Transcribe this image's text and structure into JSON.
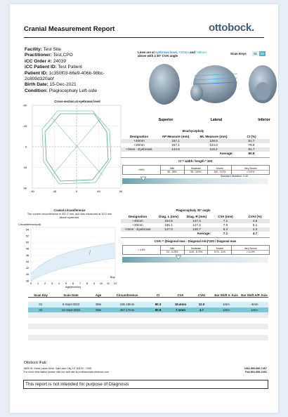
{
  "header": {
    "title": "Cranial Measurement Report",
    "logo": "ottobock."
  },
  "patient": [
    {
      "label": "Facility:",
      "value": "Test Site"
    },
    {
      "label": "Practitioner:",
      "value": "Test,CPO"
    },
    {
      "label": "iCC Order #:",
      "value": "24039"
    },
    {
      "label": "iCC Patient ID:",
      "value": "Test Patient"
    },
    {
      "label": "Patient ID:",
      "value": "1c350f03-66e9-406b-98bc-"
    },
    {
      "label": "",
      "value": "2c809d320abf"
    },
    {
      "label": "Birth Date:",
      "value": "15-Dec-2021"
    },
    {
      "label": "Condition:",
      "value": "Plagiocephaly Left-side"
    }
  ],
  "scan_view": {
    "note_parts": [
      "Lines are at ",
      "eyebrows level",
      ", ",
      "+20mm",
      " and ",
      "+40mm"
    ],
    "note_end": "above with a 30° CVAI angle",
    "scan_keys_label": "Scan Keys",
    "scan_keys": [
      "01",
      "02"
    ],
    "views": [
      "Superior",
      "Lateral",
      "Inferior"
    ]
  },
  "cross_section": {
    "title": "Cross-section at eyebrows level",
    "yticks": [
      "-90",
      "-45",
      "0",
      "45",
      "90"
    ],
    "xticks": [
      "-90",
      "-45",
      "0",
      "45",
      "90"
    ]
  },
  "brachycephaly": {
    "title": "Brachycephaly",
    "columns": [
      "Designation",
      "AP Measure (mm)",
      "ML Measure (mm)",
      "CI (%)"
    ],
    "rows": [
      [
        "+40mm",
        "157.1",
        "128.5",
        "81.7"
      ],
      [
        "+20mm",
        "157.1",
        "124.0",
        "78.9"
      ],
      [
        "+0mm - Eyebrows",
        "144.8",
        "118.2",
        "81.7"
      ]
    ],
    "average": {
      "label": "Average:",
      "values": [
        "80.8"
      ]
    },
    "formula": "CI = width / length * 100",
    "scale": [
      {
        "range": "<90%"
      },
      {
        "name": "Mild",
        "range": "90 - 95%"
      },
      {
        "name": "Moderate",
        "range": "95 - 100%"
      },
      {
        "name": "Severe",
        "range": "100 - 107%"
      },
      {
        "name": "Very Severe",
        "range": "> 107%"
      }
    ],
    "std_dev": "Standard deviation: 0.42"
  },
  "plagiocephaly": {
    "title": "Plagiocephaly 30° angle",
    "columns": [
      "Designation",
      "Diag. L (mm)",
      "Diag. R (mm)",
      "CVA (mm)",
      "CVAI (%)"
    ],
    "rows": [
      [
        "+40mm",
        "154.5",
        "147.4",
        "7.1",
        "4.6"
      ],
      [
        "+20mm",
        "155.1",
        "147.2",
        "7.9",
        "5.1"
      ],
      [
        "+0mm - Eyebrows",
        "147.0",
        "140.7",
        "6.3",
        "4.3"
      ]
    ],
    "average": {
      "label": "Average:",
      "values": [
        "7.1",
        "4.7"
      ]
    },
    "formula": "CVAI = (Diagonal max - Diagonal min)*100 / Diagonal max",
    "scale": [
      {
        "range": "< 3.5%"
      },
      {
        "name": "Mild",
        "range": "3.5 - 6.25%"
      },
      {
        "name": "Moderate",
        "range": "6.25 - 8.75%"
      },
      {
        "name": "Severe",
        "range": "8.75 - 11%"
      },
      {
        "name": "Very Severe",
        "range": "> 11.0%"
      }
    ]
  },
  "circumference": {
    "title": "Cranial circumference",
    "description": [
      "The current circumference is 457.2 mm, and was measured at 30.0 mm",
      "above eyebrows."
    ],
    "y_label": "Circumference(cm)",
    "yticks": [
      "54",
      "52",
      "50",
      "48",
      "46",
      "44",
      "42",
      "40",
      "38"
    ],
    "xticks": [
      "0",
      "1",
      "2",
      "3",
      "4",
      "5",
      "6",
      "7",
      "8",
      "9",
      "10",
      "11",
      "12"
    ],
    "x_label": "Age(months)",
    "legend": "Boy"
  },
  "scans": {
    "columns": [
      "Scan Key",
      "Scan Date",
      "Age",
      "Circumference",
      "CI",
      "CVA",
      "CVAI",
      "Ear Shift V. Axis",
      "Ear Shift A/P. Axis"
    ],
    "rows": [
      [
        "01",
        "6-Sept-2022",
        "38w",
        "436.18mm",
        "80.3",
        "18.4mm",
        "12.0",
        "1mm",
        "-4mm"
      ],
      [
        "02",
        "12-Sept-2022",
        "39w",
        "457.17mm",
        "80.8",
        "7.1mm",
        "4.7",
        "1mm",
        "1mm"
      ]
    ]
  },
  "footer": {
    "company": "Ottobock IFab:",
    "address": "5825 W. Great Lakes Drive, Salt Lake City, UT 84120 - 7205",
    "web": "For more information please visit our web site at professionals.ottobock.com",
    "phone": "USA 800.686.7267",
    "fax": "Fax 801.956.2401"
  },
  "disclaimer": "This report is not intended for purpose of Diagnosis"
}
